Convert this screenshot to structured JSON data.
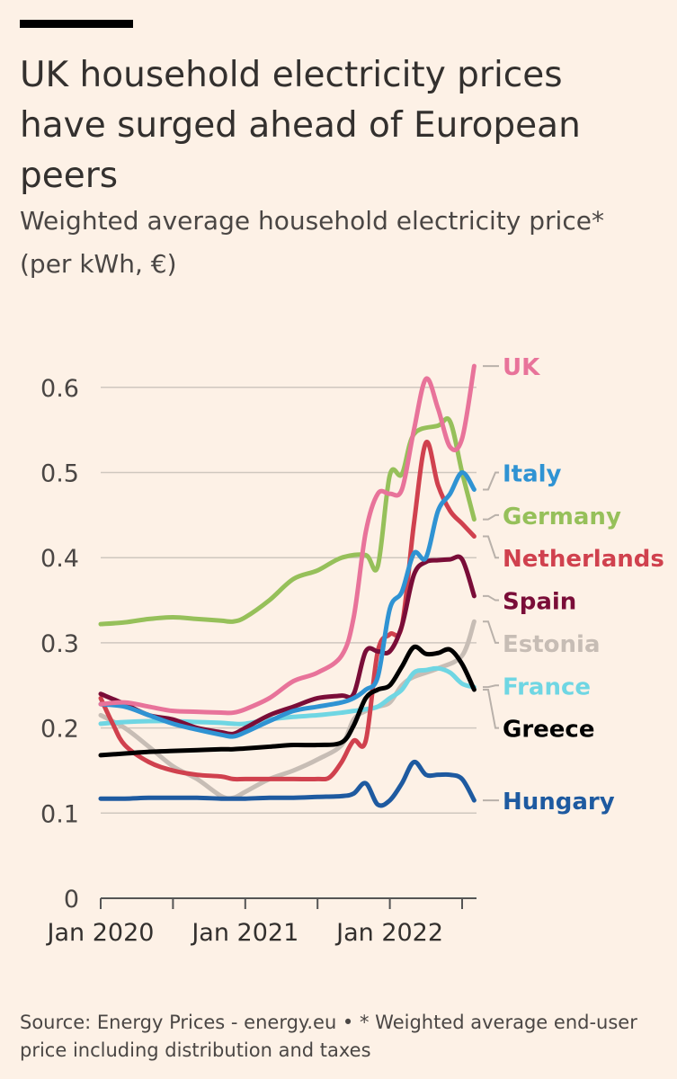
{
  "header": {
    "title": "UK household electricity prices have surged ahead of European peers",
    "subtitle": "Weighted average household electricity price* (per kWh, €)"
  },
  "footer": {
    "source": "Source: Energy Prices - energy.eu • * Weighted average end-user price including distribution and taxes"
  },
  "chart_data": {
    "type": "line",
    "title": "UK household electricity prices have surged ahead of European peers",
    "subtitle": "Weighted average household electricity price* (per kWh, €)",
    "xlabel": "",
    "ylabel": "",
    "xlim": [
      "Jan 2020",
      "Aug 2022"
    ],
    "ylim": [
      0,
      0.65
    ],
    "yticks": [
      "0",
      "0.1",
      "0.2",
      "0.3",
      "0.4",
      "0.5",
      "0.6"
    ],
    "xticks": [
      "Jan 2020",
      "Jan 2021",
      "Jan 2022"
    ],
    "grid": "horizontal",
    "legend": "direct labels at right end of lines",
    "series": [
      {
        "name": "Germany",
        "color": "#96c05a",
        "x": [
          "2020-01",
          "2020-03",
          "2020-05",
          "2020-07",
          "2020-09",
          "2020-11",
          "2020-12",
          "2021-01",
          "2021-03",
          "2021-05",
          "2021-07",
          "2021-09",
          "2021-11",
          "2021-12",
          "2022-01",
          "2022-02",
          "2022-03",
          "2022-05",
          "2022-06",
          "2022-07",
          "2022-08"
        ],
        "y": [
          0.322,
          0.324,
          0.328,
          0.33,
          0.328,
          0.326,
          0.325,
          0.33,
          0.35,
          0.375,
          0.385,
          0.4,
          0.403,
          0.39,
          0.497,
          0.498,
          0.545,
          0.555,
          0.56,
          0.5,
          0.445
        ]
      },
      {
        "name": "Estonia",
        "color": "#c7bdb5",
        "x": [
          "2020-01",
          "2020-03",
          "2020-05",
          "2020-07",
          "2020-09",
          "2020-11",
          "2020-12",
          "2021-01",
          "2021-03",
          "2021-05",
          "2021-07",
          "2021-09",
          "2021-10",
          "2021-11",
          "2021-12",
          "2022-01",
          "2022-02",
          "2022-03",
          "2022-05",
          "2022-07",
          "2022-08"
        ],
        "y": [
          0.215,
          0.2,
          0.178,
          0.155,
          0.14,
          0.12,
          0.118,
          0.125,
          0.14,
          0.15,
          0.163,
          0.18,
          0.21,
          0.22,
          0.225,
          0.23,
          0.25,
          0.26,
          0.27,
          0.285,
          0.325
        ]
      },
      {
        "name": "France",
        "color": "#6fd6e3",
        "x": [
          "2020-01",
          "2020-03",
          "2020-05",
          "2020-07",
          "2020-09",
          "2020-11",
          "2020-12",
          "2021-01",
          "2021-03",
          "2021-05",
          "2021-07",
          "2021-09",
          "2021-10",
          "2021-11",
          "2021-12",
          "2022-01",
          "2022-02",
          "2022-03",
          "2022-04",
          "2022-05",
          "2022-06",
          "2022-07",
          "2022-08"
        ],
        "y": [
          0.205,
          0.207,
          0.208,
          0.208,
          0.207,
          0.206,
          0.205,
          0.205,
          0.21,
          0.213,
          0.215,
          0.218,
          0.22,
          0.222,
          0.225,
          0.235,
          0.245,
          0.265,
          0.268,
          0.27,
          0.265,
          0.252,
          0.248
        ]
      },
      {
        "name": "Hungary",
        "color": "#1e5aa0",
        "x": [
          "2020-01",
          "2020-03",
          "2020-05",
          "2020-07",
          "2020-09",
          "2020-11",
          "2020-12",
          "2021-01",
          "2021-03",
          "2021-05",
          "2021-07",
          "2021-09",
          "2021-10",
          "2021-11",
          "2021-12",
          "2022-01",
          "2022-02",
          "2022-03",
          "2022-04",
          "2022-05",
          "2022-06",
          "2022-07",
          "2022-08"
        ],
        "y": [
          0.117,
          0.117,
          0.118,
          0.118,
          0.118,
          0.117,
          0.117,
          0.117,
          0.118,
          0.118,
          0.119,
          0.12,
          0.123,
          0.135,
          0.11,
          0.115,
          0.135,
          0.16,
          0.145,
          0.145,
          0.145,
          0.14,
          0.115
        ]
      },
      {
        "name": "Netherlands",
        "color": "#d0414e",
        "x": [
          "2020-01",
          "2020-02",
          "2020-03",
          "2020-05",
          "2020-07",
          "2020-09",
          "2020-11",
          "2020-12",
          "2021-01",
          "2021-03",
          "2021-05",
          "2021-07",
          "2021-08",
          "2021-09",
          "2021-10",
          "2021-11",
          "2021-12",
          "2022-01",
          "2022-02",
          "2022-03",
          "2022-04",
          "2022-05",
          "2022-06",
          "2022-07",
          "2022-08"
        ],
        "y": [
          0.235,
          0.205,
          0.18,
          0.16,
          0.15,
          0.145,
          0.143,
          0.14,
          0.14,
          0.14,
          0.14,
          0.14,
          0.142,
          0.16,
          0.185,
          0.185,
          0.29,
          0.31,
          0.32,
          0.44,
          0.535,
          0.485,
          0.455,
          0.44,
          0.425
        ]
      },
      {
        "name": "Spain",
        "color": "#7a0d38",
        "x": [
          "2020-01",
          "2020-03",
          "2020-05",
          "2020-07",
          "2020-09",
          "2020-11",
          "2020-12",
          "2021-01",
          "2021-03",
          "2021-05",
          "2021-07",
          "2021-09",
          "2021-10",
          "2021-11",
          "2021-12",
          "2022-01",
          "2022-02",
          "2022-03",
          "2022-04",
          "2022-05",
          "2022-06",
          "2022-07",
          "2022-08"
        ],
        "y": [
          0.24,
          0.228,
          0.215,
          0.21,
          0.2,
          0.195,
          0.193,
          0.2,
          0.215,
          0.225,
          0.235,
          0.238,
          0.24,
          0.29,
          0.29,
          0.29,
          0.32,
          0.38,
          0.395,
          0.397,
          0.398,
          0.398,
          0.355
        ]
      },
      {
        "name": "Italy",
        "color": "#2f93d3",
        "x": [
          "2020-01",
          "2020-03",
          "2020-05",
          "2020-07",
          "2020-09",
          "2020-11",
          "2020-12",
          "2021-01",
          "2021-03",
          "2021-05",
          "2021-07",
          "2021-09",
          "2021-10",
          "2021-11",
          "2021-12",
          "2022-01",
          "2022-02",
          "2022-03",
          "2022-04",
          "2022-05",
          "2022-06",
          "2022-07",
          "2022-08"
        ],
        "y": [
          0.228,
          0.225,
          0.215,
          0.205,
          0.198,
          0.192,
          0.19,
          0.195,
          0.208,
          0.22,
          0.225,
          0.23,
          0.235,
          0.245,
          0.26,
          0.34,
          0.36,
          0.405,
          0.4,
          0.455,
          0.475,
          0.5,
          0.48
        ]
      },
      {
        "name": "Greece",
        "color": "#000000",
        "x": [
          "2020-01",
          "2020-03",
          "2020-05",
          "2020-07",
          "2020-09",
          "2020-11",
          "2020-12",
          "2021-01",
          "2021-03",
          "2021-05",
          "2021-07",
          "2021-09",
          "2021-10",
          "2021-11",
          "2021-12",
          "2022-01",
          "2022-02",
          "2022-03",
          "2022-04",
          "2022-05",
          "2022-06",
          "2022-07",
          "2022-08"
        ],
        "y": [
          0.168,
          0.17,
          0.172,
          0.173,
          0.174,
          0.175,
          0.175,
          0.176,
          0.178,
          0.18,
          0.18,
          0.183,
          0.203,
          0.235,
          0.245,
          0.25,
          0.272,
          0.295,
          0.287,
          0.288,
          0.292,
          0.275,
          0.245
        ]
      },
      {
        "name": "UK",
        "color": "#e8739a",
        "x": [
          "2020-01",
          "2020-03",
          "2020-05",
          "2020-07",
          "2020-09",
          "2020-11",
          "2020-12",
          "2021-01",
          "2021-03",
          "2021-05",
          "2021-07",
          "2021-09",
          "2021-10",
          "2021-11",
          "2021-12",
          "2022-01",
          "2022-02",
          "2022-03",
          "2022-04",
          "2022-05",
          "2022-06",
          "2022-07",
          "2022-08"
        ],
        "y": [
          0.228,
          0.23,
          0.225,
          0.22,
          0.219,
          0.218,
          0.218,
          0.222,
          0.235,
          0.255,
          0.265,
          0.285,
          0.33,
          0.43,
          0.475,
          0.475,
          0.48,
          0.55,
          0.61,
          0.575,
          0.53,
          0.54,
          0.625
        ]
      }
    ],
    "labels": [
      {
        "name": "UK",
        "color": "#e8739a",
        "at": 0.625,
        "ref": 0.625
      },
      {
        "name": "Italy",
        "color": "#2f93d3",
        "at": 0.5,
        "ref": 0.48
      },
      {
        "name": "Germany",
        "color": "#96c05a",
        "at": 0.45,
        "ref": 0.445
      },
      {
        "name": "Netherlands",
        "color": "#d0414e",
        "at": 0.4,
        "ref": 0.425
      },
      {
        "name": "Spain",
        "color": "#7a0d38",
        "at": 0.35,
        "ref": 0.355
      },
      {
        "name": "Estonia",
        "color": "#c7bdb5",
        "at": 0.3,
        "ref": 0.325
      },
      {
        "name": "France",
        "color": "#6fd6e3",
        "at": 0.25,
        "ref": 0.248
      },
      {
        "name": "Greece",
        "color": "#000000",
        "at": 0.2,
        "ref": 0.245
      },
      {
        "name": "Hungary",
        "color": "#1e5aa0",
        "at": 0.115,
        "ref": 0.115
      }
    ]
  }
}
